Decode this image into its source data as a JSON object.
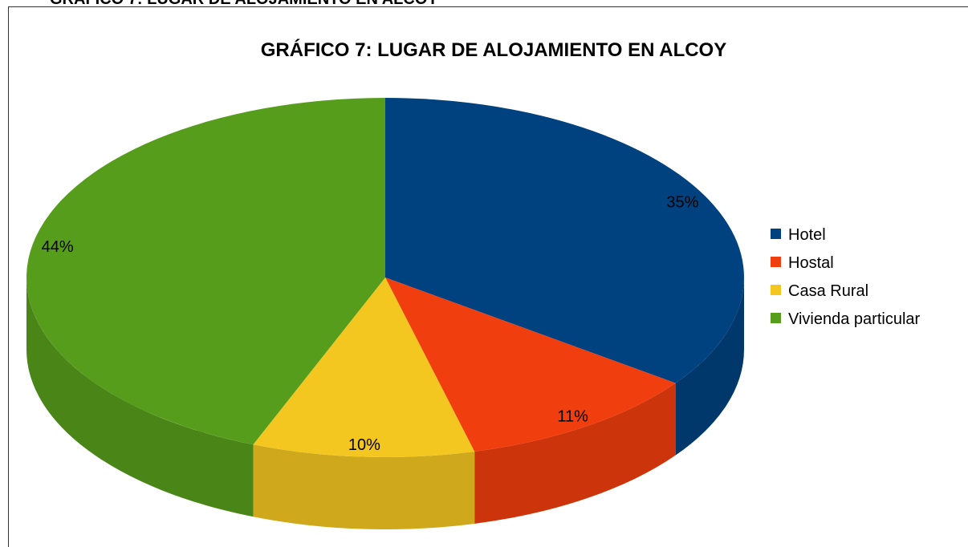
{
  "heading": "GRÁFICO 7: LUGAR DE ALOJAMIENTO EN ALCOY",
  "chart_data": {
    "type": "pie3d",
    "title": "GRÁFICO 7: LUGAR DE ALOJAMIENTO EN ALCOY",
    "categories": [
      "Hotel",
      "Hostal",
      "Casa Rural",
      "Vivienda particular"
    ],
    "values": [
      35,
      11,
      10,
      44
    ],
    "value_labels": [
      "35%",
      "11%",
      "10%",
      "44%"
    ],
    "colors": [
      "#00427f",
      "#f03e0e",
      "#f3c720",
      "#579d1c"
    ],
    "legend": "right"
  }
}
